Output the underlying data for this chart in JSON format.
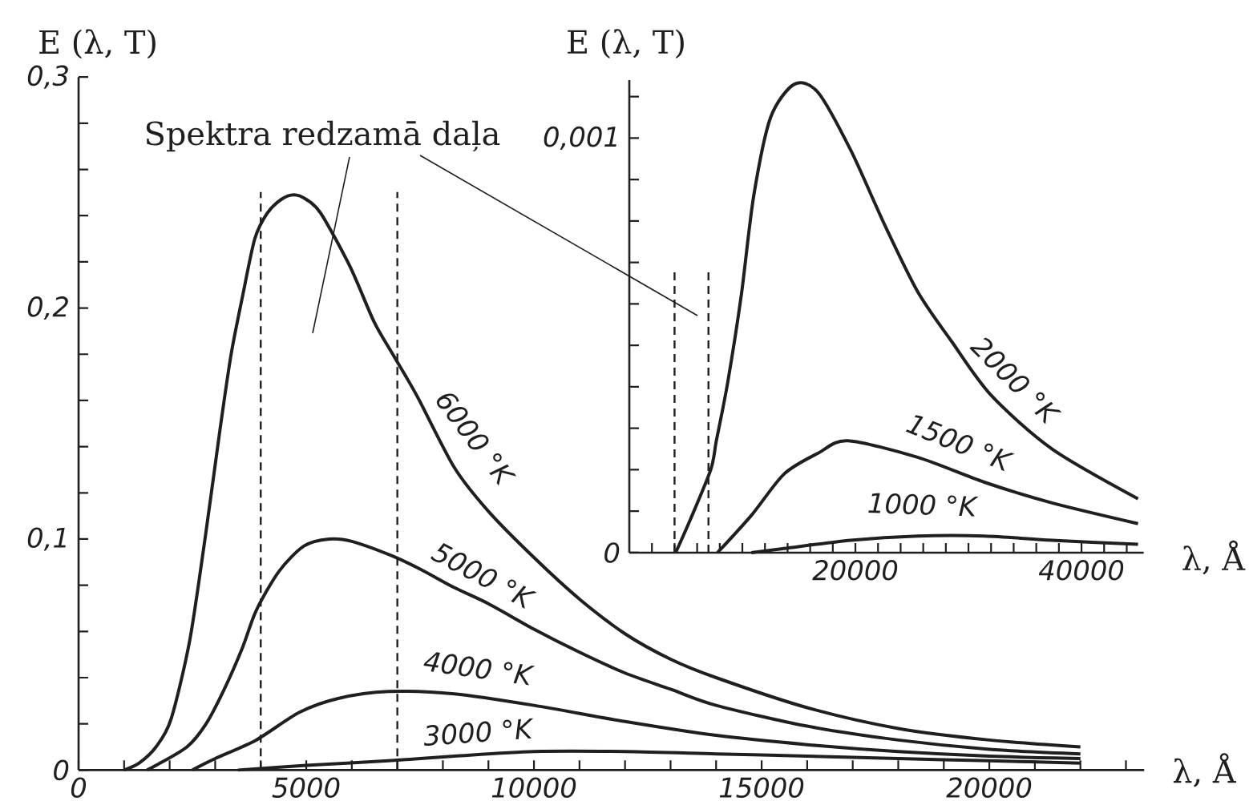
{
  "chart_data": [
    {
      "type": "line",
      "xlabel": "λ, Å",
      "ylabel": "E (λ, T)",
      "annotations": [
        "Spektra redzamā daļa"
      ],
      "xlim": [
        0,
        23400
      ],
      "ylim": [
        0,
        0.3
      ],
      "xticks": [
        0,
        {
          "value": 1000,
          "label": null
        },
        {
          "value": 2000,
          "label": null
        },
        {
          "value": 3000,
          "label": null
        },
        {
          "value": 4000,
          "label": null
        },
        5000,
        {
          "value": 6000,
          "label": null
        },
        {
          "value": 7000,
          "label": null
        },
        {
          "value": 8000,
          "label": null
        },
        {
          "value": 9000,
          "label": null
        },
        10000,
        {
          "value": 11000,
          "label": null
        },
        {
          "value": 12000,
          "label": null
        },
        {
          "value": 13000,
          "label": null
        },
        {
          "value": 14000,
          "label": null
        },
        15000,
        {
          "value": 16000,
          "label": null
        },
        {
          "value": 17000,
          "label": null
        },
        {
          "value": 18000,
          "label": null
        },
        {
          "value": 19000,
          "label": null
        },
        20000,
        {
          "value": 21000,
          "label": null
        },
        {
          "value": 22000,
          "label": null
        },
        {
          "value": 23000,
          "label": null
        }
      ],
      "yticks": [
        0,
        {
          "value": 0.02,
          "label": null
        },
        {
          "value": 0.04,
          "label": null
        },
        {
          "value": 0.06,
          "label": null
        },
        {
          "value": 0.08,
          "label": null
        },
        {
          "value": 0.1,
          "label": "0,1"
        },
        {
          "value": 0.12,
          "label": null
        },
        {
          "value": 0.14,
          "label": null
        },
        {
          "value": 0.16,
          "label": null
        },
        {
          "value": 0.18,
          "label": null
        },
        {
          "value": 0.2,
          "label": "0,2"
        },
        {
          "value": 0.22,
          "label": null
        },
        {
          "value": 0.24,
          "label": null
        },
        {
          "value": 0.26,
          "label": null
        },
        {
          "value": 0.28,
          "label": null
        },
        {
          "value": 0.3,
          "label": "0,3"
        }
      ],
      "ref_lines": [
        {
          "axis": "x",
          "value": 4000,
          "line_style": "dashed"
        },
        {
          "axis": "x",
          "value": 7000,
          "line_style": "dashed"
        }
      ],
      "series": [
        {
          "name": "6000 °K",
          "color": "#1f1f1f",
          "x": [
            1000,
            1330,
            1700,
            2030,
            2440,
            2790,
            3110,
            3350,
            3600,
            3870,
            4140,
            4450,
            4730,
            5000,
            5320,
            5960,
            6490,
            6900,
            7430,
            8250,
            9000,
            10000,
            11000,
            12000,
            13000,
            14000,
            16000,
            18000,
            20000,
            22000
          ],
          "values": [
            0,
            0.003,
            0.01,
            0.022,
            0.056,
            0.102,
            0.148,
            0.18,
            0.205,
            0.23,
            0.241,
            0.247,
            0.249,
            0.247,
            0.241,
            0.218,
            0.194,
            0.18,
            0.162,
            0.131,
            0.112,
            0.092,
            0.074,
            0.059,
            0.048,
            0.04,
            0.027,
            0.018,
            0.013,
            0.01
          ]
        },
        {
          "name": "5000 °K",
          "color": "#1f1f1f",
          "x": [
            1500,
            1700,
            2380,
            2800,
            3200,
            3600,
            3900,
            4400,
            4950,
            5500,
            6000,
            6850,
            7500,
            8250,
            9000,
            10000,
            11000,
            12000,
            13000,
            14000,
            16000,
            18000,
            20000,
            22000
          ],
          "values": [
            0,
            0.002,
            0.01,
            0.02,
            0.035,
            0.053,
            0.069,
            0.086,
            0.097,
            0.1,
            0.099,
            0.093,
            0.087,
            0.079,
            0.072,
            0.061,
            0.051,
            0.042,
            0.035,
            0.028,
            0.019,
            0.013,
            0.009,
            0.007
          ]
        },
        {
          "name": "4000 °K",
          "color": "#1f1f1f",
          "x": [
            2500,
            3000,
            3900,
            4850,
            5700,
            6800,
            8250,
            10000,
            12000,
            14000,
            16000,
            18000,
            20000,
            22000
          ],
          "values": [
            0,
            0.005,
            0.013,
            0.025,
            0.031,
            0.034,
            0.033,
            0.028,
            0.021,
            0.015,
            0.011,
            0.008,
            0.006,
            0.005
          ]
        },
        {
          "name": "3000 °K",
          "color": "#1f1f1f",
          "x": [
            3500,
            5000,
            6800,
            8250,
            10000,
            12000,
            14000,
            16000,
            18000,
            20000,
            22000
          ],
          "values": [
            0,
            0.002,
            0.004,
            0.006,
            0.008,
            0.008,
            0.007,
            0.006,
            0.005,
            0.004,
            0.003
          ]
        }
      ]
    },
    {
      "type": "line",
      "xlabel": "λ, Å",
      "ylabel": "E (λ, T)",
      "xlim": [
        0,
        45500
      ],
      "ylim": [
        0,
        0.00114
      ],
      "xticks": [
        {
          "value": 2000,
          "label": null
        },
        {
          "value": 4000,
          "label": null
        },
        {
          "value": 6000,
          "label": null
        },
        {
          "value": 8000,
          "label": null
        },
        {
          "value": 10000,
          "label": null
        },
        {
          "value": 12000,
          "label": null
        },
        {
          "value": 14000,
          "label": null
        },
        {
          "value": 16000,
          "label": null
        },
        {
          "value": 18000,
          "label": null
        },
        20000,
        {
          "value": 22000,
          "label": null
        },
        {
          "value": 24000,
          "label": null
        },
        {
          "value": 26000,
          "label": null
        },
        {
          "value": 28000,
          "label": null
        },
        {
          "value": 30000,
          "label": null
        },
        {
          "value": 32000,
          "label": null
        },
        {
          "value": 34000,
          "label": null
        },
        {
          "value": 36000,
          "label": null
        },
        {
          "value": 38000,
          "label": null
        },
        40000,
        {
          "value": 42000,
          "label": null
        },
        {
          "value": 44000,
          "label": null
        }
      ],
      "yticks": [
        0,
        {
          "value": 0.0001,
          "label": null
        },
        {
          "value": 0.0002,
          "label": null
        },
        {
          "value": 0.0003,
          "label": null
        },
        {
          "value": 0.0004,
          "label": null
        },
        {
          "value": 0.0005,
          "label": null
        },
        {
          "value": 0.0006,
          "label": null
        },
        {
          "value": 0.0007,
          "label": null
        },
        {
          "value": 0.0008,
          "label": null
        },
        {
          "value": 0.0009,
          "label": null
        },
        {
          "value": 0.001,
          "label": "0,001"
        },
        {
          "value": 0.0011,
          "label": null
        }
      ],
      "ref_lines": [
        {
          "axis": "x",
          "value": 4000,
          "line_style": "dashed"
        },
        {
          "axis": "x",
          "value": 7000,
          "line_style": "dashed"
        }
      ],
      "series": [
        {
          "name": "2000 °K",
          "color": "#1f1f1f",
          "x": [
            4100,
            5400,
            7200,
            7700,
            8700,
            9900,
            11000,
            12500,
            14600,
            16700,
            19600,
            22600,
            25500,
            28500,
            32000,
            37400,
            45000
          ],
          "values": [
            0,
            8e-05,
            0.0002,
            0.00027,
            0.00041,
            0.00062,
            0.00086,
            0.00105,
            0.00113,
            0.00111,
            0.00097,
            0.00079,
            0.00063,
            0.00051,
            0.00038,
            0.00025,
            0.00013
          ]
        },
        {
          "name": "1500 °K",
          "color": "#1f1f1f",
          "x": [
            7800,
            10800,
            13700,
            16700,
            19300,
            25500,
            31400,
            37400,
            45000
          ],
          "values": [
            0,
            9e-05,
            0.00019,
            0.00024,
            0.00027,
            0.00023,
            0.00017,
            0.00012,
            7e-05
          ]
        },
        {
          "name": "1000 °K",
          "color": "#1f1f1f",
          "x": [
            10800,
            13700,
            19600,
            25500,
            31400,
            37400,
            45000
          ],
          "values": [
            0,
            1e-05,
            3e-05,
            4e-05,
            4e-05,
            3e-05,
            2e-05
          ]
        }
      ]
    }
  ]
}
